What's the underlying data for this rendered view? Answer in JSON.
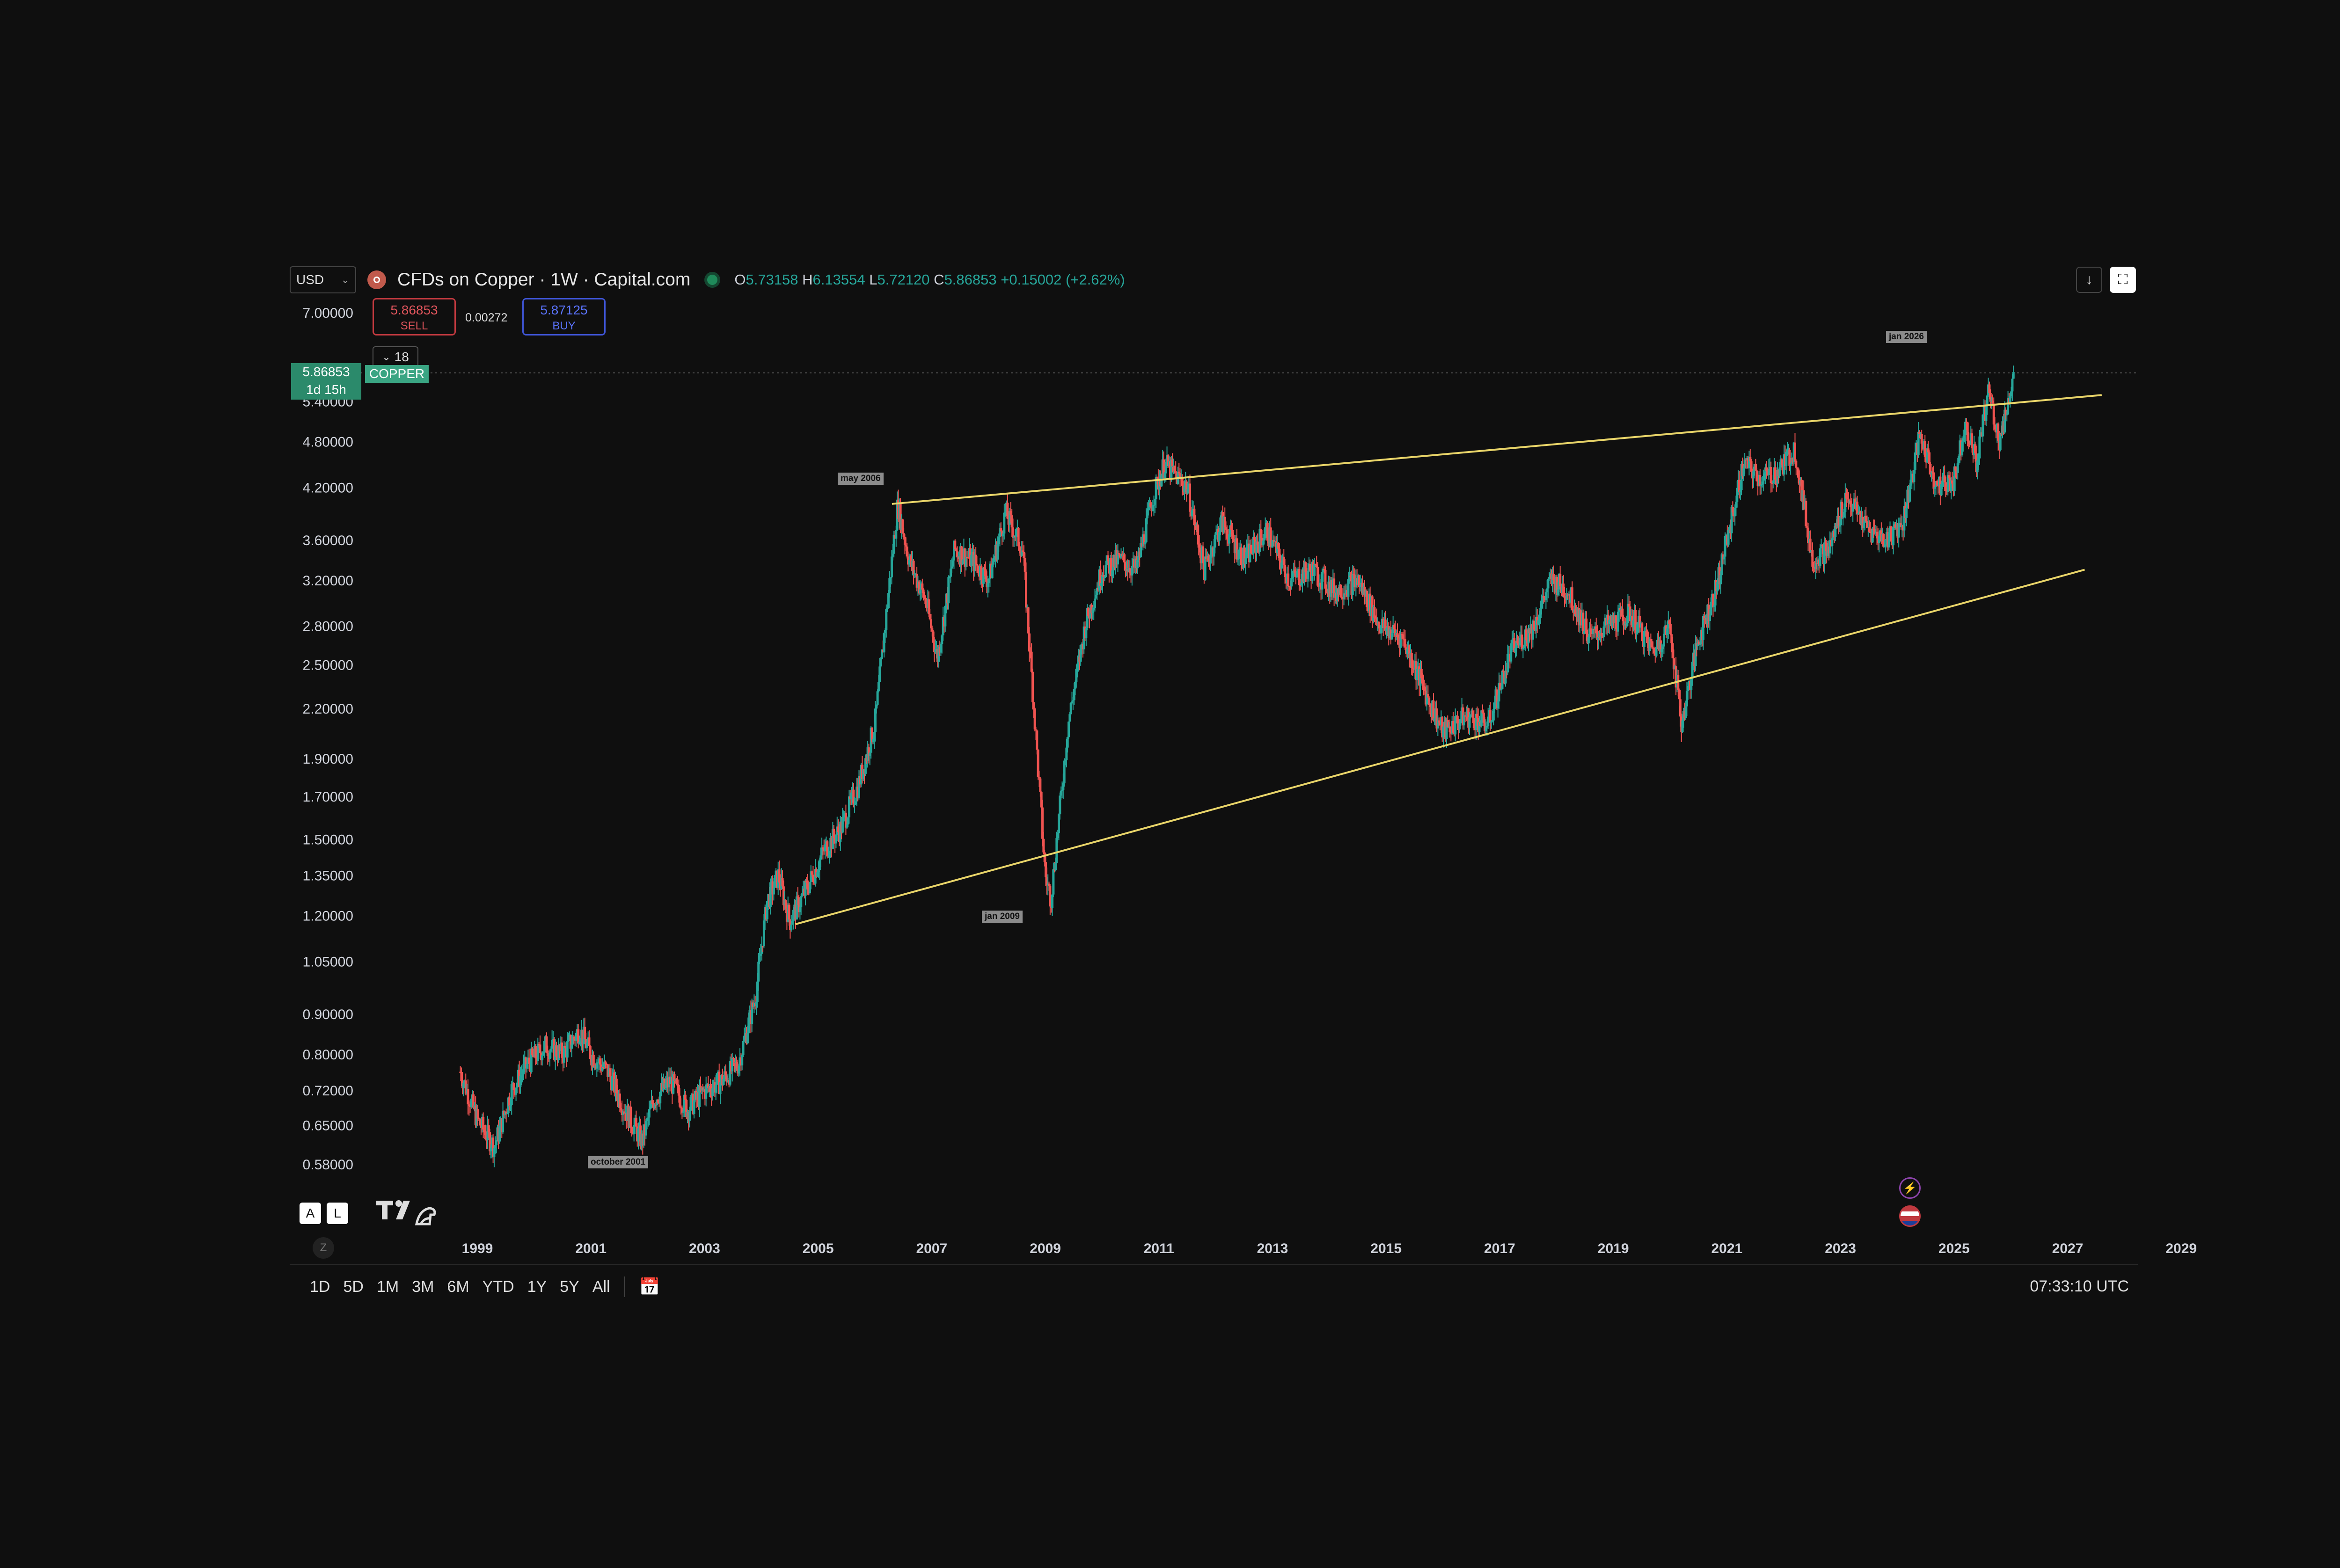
{
  "header": {
    "currency": "USD",
    "title": "CFDs on Copper · 1W · Capital.com",
    "ohlc": {
      "o": "5.73158",
      "h": "6.13554",
      "l": "5.72120",
      "c": "5.86853",
      "change": "+0.15002 (+2.62%)"
    }
  },
  "trade": {
    "sell_price": "5.86853",
    "sell_label": "SELL",
    "spread": "0.00272",
    "buy_price": "5.87125",
    "buy_label": "BUY",
    "indicators_count": "18"
  },
  "price_tag": {
    "price": "5.86853",
    "countdown": "1d 15h",
    "symbol": "COPPER"
  },
  "bottom": {
    "ranges": [
      "1D",
      "5D",
      "1M",
      "3M",
      "6M",
      "YTD",
      "1Y",
      "5Y",
      "All"
    ],
    "time": "07:33:10 UTC",
    "a_label": "A",
    "l_label": "L",
    "z_label": "Z"
  },
  "colors": {
    "up": "#26a69a",
    "down": "#ef5350",
    "trendline": "#e8d469",
    "background": "#0f0f0f"
  },
  "icons": [
    "chevron-down-icon",
    "copper-symbol-icon",
    "status-dot-icon",
    "download-icon",
    "fullscreen-icon",
    "indicators-chevron-icon",
    "tradingview-logo-icon",
    "calendar-goto-icon",
    "lightning-event-icon",
    "us-flag-event-icon"
  ],
  "chart_data": {
    "type": "candlestick",
    "scale": "log",
    "y_ticks": [
      "7.00000",
      "5.40000",
      "4.80000",
      "4.20000",
      "3.60000",
      "3.20000",
      "2.80000",
      "2.50000",
      "2.20000",
      "1.90000",
      "1.70000",
      "1.50000",
      "1.35000",
      "1.20000",
      "1.05000",
      "0.90000",
      "0.80000",
      "0.72000",
      "0.65000",
      "0.58000"
    ],
    "x_ticks": [
      "1999",
      "2001",
      "2003",
      "2005",
      "2007",
      "2009",
      "2011",
      "2013",
      "2015",
      "2017",
      "2019",
      "2021",
      "2023",
      "2025",
      "2027",
      "2029"
    ],
    "annotations": [
      "may 2006",
      "jan 2009",
      "october 2001",
      "jan 2026"
    ],
    "price_path": [
      [
        1998.7,
        0.76
      ],
      [
        1999.0,
        0.66
      ],
      [
        1999.3,
        0.61
      ],
      [
        1999.6,
        0.72
      ],
      [
        1999.9,
        0.78
      ],
      [
        2000.2,
        0.82
      ],
      [
        2000.5,
        0.8
      ],
      [
        2000.8,
        0.86
      ],
      [
        2001.0,
        0.8
      ],
      [
        2001.3,
        0.76
      ],
      [
        2001.6,
        0.68
      ],
      [
        2001.9,
        0.62
      ],
      [
        2002.1,
        0.7
      ],
      [
        2002.4,
        0.74
      ],
      [
        2002.7,
        0.68
      ],
      [
        2003.0,
        0.72
      ],
      [
        2003.3,
        0.74
      ],
      [
        2003.6,
        0.78
      ],
      [
        2003.9,
        0.95
      ],
      [
        2004.1,
        1.25
      ],
      [
        2004.3,
        1.35
      ],
      [
        2004.5,
        1.18
      ],
      [
        2004.8,
        1.3
      ],
      [
        2005.1,
        1.45
      ],
      [
        2005.4,
        1.55
      ],
      [
        2005.7,
        1.75
      ],
      [
        2006.0,
        2.1
      ],
      [
        2006.2,
        2.9
      ],
      [
        2006.4,
        4.0
      ],
      [
        2006.6,
        3.4
      ],
      [
        2006.9,
        3.0
      ],
      [
        2007.1,
        2.55
      ],
      [
        2007.4,
        3.5
      ],
      [
        2007.7,
        3.4
      ],
      [
        2008.0,
        3.2
      ],
      [
        2008.3,
        3.9
      ],
      [
        2008.6,
        3.5
      ],
      [
        2008.8,
        2.2
      ],
      [
        2009.0,
        1.35
      ],
      [
        2009.1,
        1.26
      ],
      [
        2009.4,
        2.1
      ],
      [
        2009.7,
        2.8
      ],
      [
        2010.0,
        3.3
      ],
      [
        2010.3,
        3.4
      ],
      [
        2010.6,
        3.3
      ],
      [
        2010.9,
        4.1
      ],
      [
        2011.1,
        4.5
      ],
      [
        2011.5,
        4.2
      ],
      [
        2011.8,
        3.3
      ],
      [
        2012.1,
        3.8
      ],
      [
        2012.5,
        3.4
      ],
      [
        2012.9,
        3.7
      ],
      [
        2013.3,
        3.2
      ],
      [
        2013.7,
        3.3
      ],
      [
        2014.1,
        3.1
      ],
      [
        2014.5,
        3.2
      ],
      [
        2014.9,
        2.8
      ],
      [
        2015.3,
        2.7
      ],
      [
        2015.7,
        2.3
      ],
      [
        2016.0,
        2.05
      ],
      [
        2016.4,
        2.15
      ],
      [
        2016.8,
        2.1
      ],
      [
        2017.2,
        2.6
      ],
      [
        2017.6,
        2.8
      ],
      [
        2017.9,
        3.2
      ],
      [
        2018.2,
        3.1
      ],
      [
        2018.6,
        2.7
      ],
      [
        2018.9,
        2.8
      ],
      [
        2019.3,
        2.9
      ],
      [
        2019.7,
        2.6
      ],
      [
        2020.0,
        2.8
      ],
      [
        2020.2,
        2.1
      ],
      [
        2020.5,
        2.7
      ],
      [
        2020.8,
        3.1
      ],
      [
        2021.0,
        3.6
      ],
      [
        2021.3,
        4.5
      ],
      [
        2021.6,
        4.3
      ],
      [
        2021.9,
        4.4
      ],
      [
        2022.2,
        4.7
      ],
      [
        2022.5,
        3.4
      ],
      [
        2022.8,
        3.5
      ],
      [
        2023.1,
        4.1
      ],
      [
        2023.5,
        3.7
      ],
      [
        2023.8,
        3.6
      ],
      [
        2024.1,
        3.8
      ],
      [
        2024.4,
        4.9
      ],
      [
        2024.7,
        4.2
      ],
      [
        2025.0,
        4.3
      ],
      [
        2025.2,
        5.1
      ],
      [
        2025.4,
        4.5
      ],
      [
        2025.6,
        5.6
      ],
      [
        2025.8,
        4.8
      ],
      [
        2025.95,
        5.4
      ],
      [
        2026.05,
        5.87
      ]
    ],
    "trendlines": [
      {
        "from": [
          2006.3,
          4.0
        ],
        "to": [
          2027.6,
          5.5
        ]
      },
      {
        "from": [
          2004.6,
          1.17
        ],
        "to": [
          2027.3,
          3.3
        ]
      }
    ]
  }
}
